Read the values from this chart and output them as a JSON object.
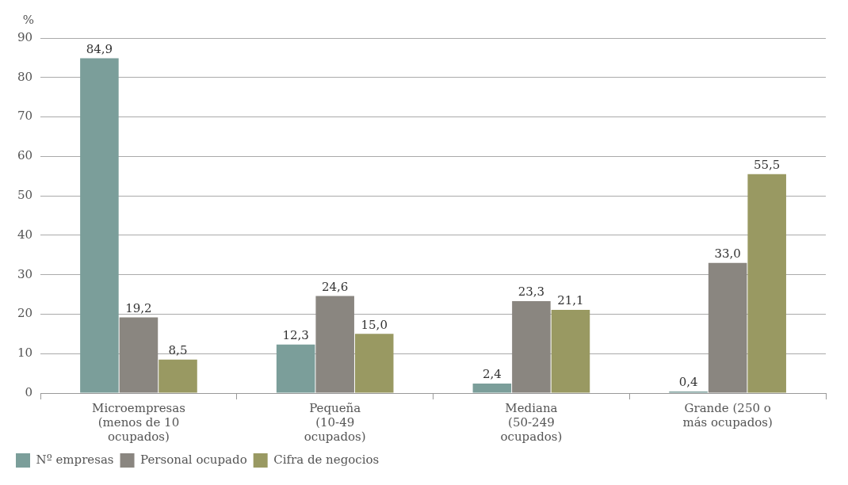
{
  "chart_data": {
    "type": "bar",
    "ylabel": "%",
    "categories": [
      "Microempresas (menos de 10 ocupados)",
      "Pequeña (10-49 ocupados)",
      "Mediana (50-249 ocupados)",
      "Grande (250 o más ocupados)"
    ],
    "series": [
      {
        "name": "Nº empresas",
        "color": "#7b9e9a",
        "values": [
          84.9,
          12.3,
          2.4,
          0.4
        ],
        "value_labels": [
          "84,9",
          "12,3",
          "2,4",
          "0,4"
        ]
      },
      {
        "name": "Personal ocupado",
        "color": "#8a8680",
        "values": [
          19.2,
          24.6,
          23.3,
          33.0
        ],
        "value_labels": [
          "19,2",
          "24,6",
          "23,3",
          "33,0"
        ]
      },
      {
        "name": "Cifra de negocios",
        "color": "#999962",
        "values": [
          8.5,
          15.0,
          21.1,
          55.5
        ],
        "value_labels": [
          "8,5",
          "15,0",
          "21,1",
          "55,5"
        ]
      }
    ],
    "ylim": [
      0,
      90
    ],
    "yticks": [
      0,
      10,
      20,
      30,
      40,
      50,
      60,
      70,
      80,
      90
    ],
    "grid": "y",
    "legend": "bottom left"
  }
}
